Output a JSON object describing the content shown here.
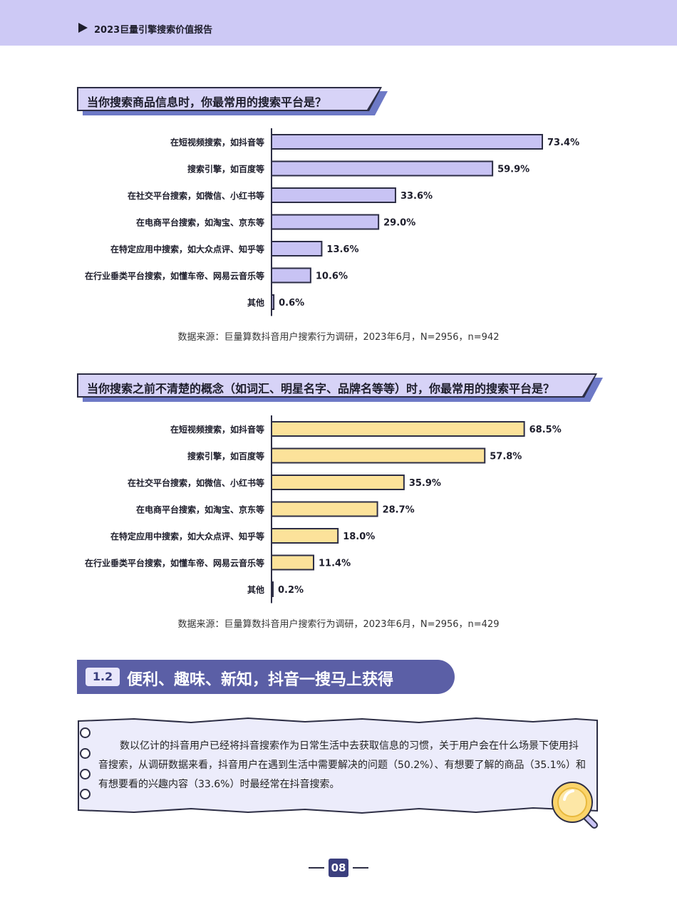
{
  "header": {
    "title": "2023巨量引擎搜索价值报告"
  },
  "question1": {
    "title": "当你搜索商品信息时，你最常用的搜索平台是？"
  },
  "question2": {
    "title": "当你搜索之前不清楚的概念（如词汇、明星名字、品牌名等等）时，你最常用的搜索平台是？"
  },
  "chart_data": [
    {
      "type": "bar",
      "orientation": "horizontal",
      "categories": [
        "在短视频搜索，如抖音等",
        "搜索引擎，如百度等",
        "在社交平台搜索，如微信、小红书等",
        "在电商平台搜索，如淘宝、京东等",
        "在特定应用中搜索，如大众点评、知乎等",
        "在行业垂类平台搜索，如懂车帝、网易云音乐等",
        "其他"
      ],
      "values": [
        73.4,
        59.9,
        33.6,
        29.0,
        13.6,
        10.6,
        0.6
      ],
      "labels": [
        "73.4%",
        "59.9%",
        "33.6%",
        "29.0%",
        "13.6%",
        "10.6%",
        "0.6%"
      ],
      "unit": "%",
      "color": "#c8c3f4",
      "source": "数据来源：巨量算数抖音用户搜索行为调研，2023年6月，N=2956，n=942"
    },
    {
      "type": "bar",
      "orientation": "horizontal",
      "categories": [
        "在短视频搜索，如抖音等",
        "搜索引擎，如百度等",
        "在社交平台搜索，如微信、小红书等",
        "在电商平台搜索，如淘宝、京东等",
        "在特定应用中搜索，如大众点评、知乎等",
        "在行业垂类平台搜索，如懂车帝、网易云音乐等",
        "其他"
      ],
      "values": [
        68.5,
        57.8,
        35.9,
        28.7,
        18.0,
        11.4,
        0.2
      ],
      "labels": [
        "68.5%",
        "57.8%",
        "35.9%",
        "28.7%",
        "18.0%",
        "11.4%",
        "0.2%"
      ],
      "unit": "%",
      "color": "#fce29a",
      "source": "数据来源：巨量算数抖音用户搜索行为调研，2023年6月，N=2956，n=429"
    }
  ],
  "section": {
    "number": "1.2",
    "title": "便利、趣味、新知，抖音一搜马上获得"
  },
  "note": {
    "text": "数以亿计的抖音用户已经将抖音搜索作为日常生活中去获取信息的习惯，关于用户会在什么场景下使用抖音搜索，从调研数据来看，抖音用户在遇到生活中需要解决的问题（50.2%）、有想要了解的商品（35.1%）和有想要看的兴趣内容（33.6%）时最经常在抖音搜索。"
  },
  "footer": {
    "page_number": "08"
  }
}
